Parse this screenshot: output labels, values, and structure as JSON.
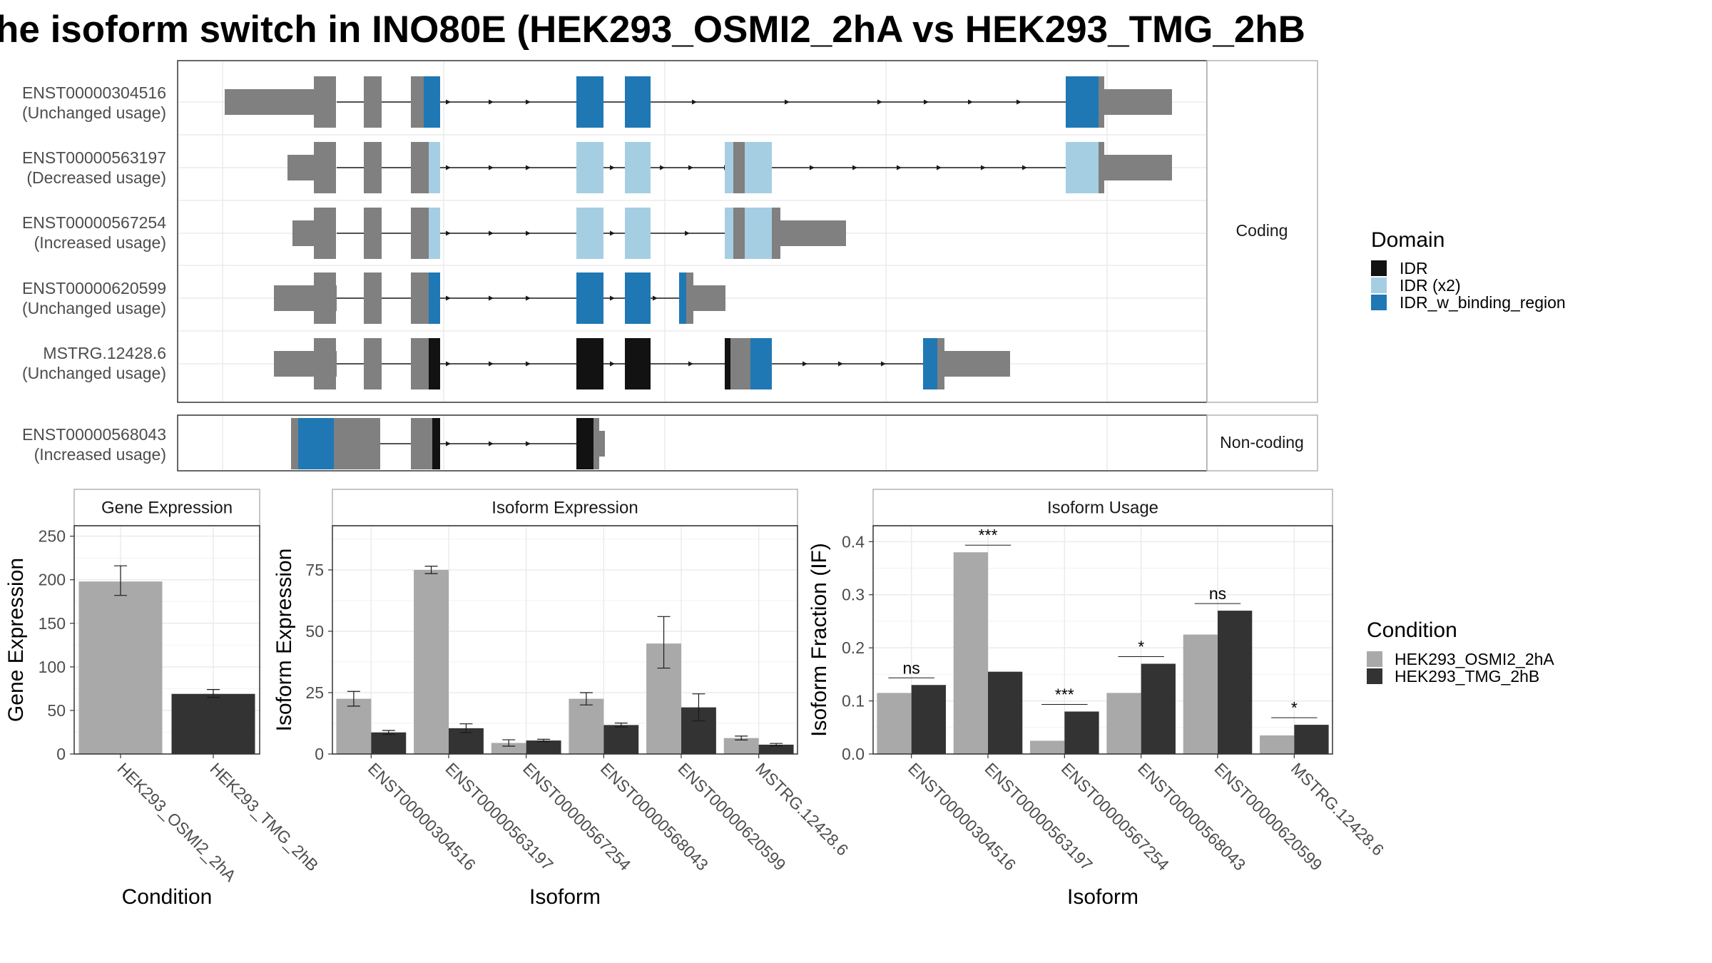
{
  "title": "he isoform switch in INO80E (HEK293_OSMI2_2hA vs HEK293_TMG_2hB",
  "colors": {
    "IDR": "#121212",
    "IDR (x2)": "#a6cee3",
    "IDR_w_binding_region": "#1f78b4",
    "none": "#808080",
    "HEK293_OSMI2_2hA": "#a9a9a9",
    "HEK293_TMG_2hB": "#333333"
  },
  "structure": {
    "panels": [
      {
        "name": "Coding",
        "rows": [
          {
            "isoform": "ENST00000304516",
            "status": "(Unchanged usage)"
          },
          {
            "isoform": "ENST00000563197",
            "status": "(Decreased usage)"
          },
          {
            "isoform": "ENST00000567254",
            "status": "(Increased usage)"
          },
          {
            "isoform": "ENST00000620599",
            "status": "(Unchanged usage)"
          },
          {
            "isoform": "MSTRG.12428.6",
            "status": "(Unchanged usage)"
          }
        ]
      },
      {
        "name": "Non-coding",
        "rows": [
          {
            "isoform": "ENST00000568043",
            "status": "(Increased usage)"
          }
        ]
      }
    ],
    "legend": {
      "title": "Domain",
      "items": [
        "IDR",
        "IDR (x2)",
        "IDR_w_binding_region"
      ]
    }
  },
  "chart_data": [
    {
      "type": "bar",
      "title": "Gene Expression",
      "xlabel": "Condition",
      "ylabel": "Gene Expression",
      "categories": [
        "HEK293_OSMI2_2hA",
        "HEK293_TMG_2hB"
      ],
      "values": [
        198,
        69
      ],
      "error": [
        [
          182,
          216
        ],
        [
          65,
          74
        ]
      ],
      "ylim": [
        0,
        262
      ],
      "yticks": [
        0,
        50,
        100,
        150,
        200,
        250
      ]
    },
    {
      "type": "bar",
      "title": "Isoform Expression",
      "xlabel": "Isoform",
      "ylabel": "Isoform Expression",
      "categories": [
        "ENST00000304516",
        "ENST00000563197",
        "ENST00000567254",
        "ENST00000568043",
        "ENST00000620599",
        "MSTRG.12428.6"
      ],
      "series": [
        {
          "name": "HEK293_OSMI2_2hA",
          "values": [
            22.5,
            75,
            4.5,
            22.5,
            45,
            6.5
          ],
          "error": [
            [
              19.5,
              25.5
            ],
            [
              73.5,
              76.5
            ],
            [
              3.2,
              5.8
            ],
            [
              20,
              25
            ],
            [
              35,
              56
            ],
            [
              5.7,
              7.3
            ]
          ]
        },
        {
          "name": "HEK293_TMG_2hB",
          "values": [
            8.8,
            10.5,
            5.5,
            11.8,
            19,
            3.8
          ],
          "error": [
            [
              8,
              9.6
            ],
            [
              8.7,
              12.3
            ],
            [
              5,
              6
            ],
            [
              11,
              12.6
            ],
            [
              13.5,
              24.5
            ],
            [
              3.3,
              4.3
            ]
          ]
        }
      ],
      "ylim": [
        0,
        93
      ],
      "yticks": [
        0,
        25,
        50,
        75
      ]
    },
    {
      "type": "bar",
      "title": "Isoform Usage",
      "xlabel": "Isoform",
      "ylabel": "Isoform Fraction (IF)",
      "categories": [
        "ENST00000304516",
        "ENST00000563197",
        "ENST00000567254",
        "ENST00000568043",
        "ENST00000620599",
        "MSTRG.12428.6"
      ],
      "series": [
        {
          "name": "HEK293_OSMI2_2hA",
          "values": [
            0.115,
            0.38,
            0.025,
            0.115,
            0.225,
            0.035
          ]
        },
        {
          "name": "HEK293_TMG_2hB",
          "values": [
            0.13,
            0.155,
            0.08,
            0.17,
            0.27,
            0.055
          ]
        }
      ],
      "significance": [
        "ns",
        "***",
        "***",
        "*",
        "ns",
        "*"
      ],
      "ylim": [
        0,
        0.43
      ],
      "yticks": [
        0.0,
        0.1,
        0.2,
        0.3,
        0.4
      ]
    }
  ],
  "condition_legend": {
    "title": "Condition",
    "items": [
      "HEK293_OSMI2_2hA",
      "HEK293_TMG_2hB"
    ]
  }
}
